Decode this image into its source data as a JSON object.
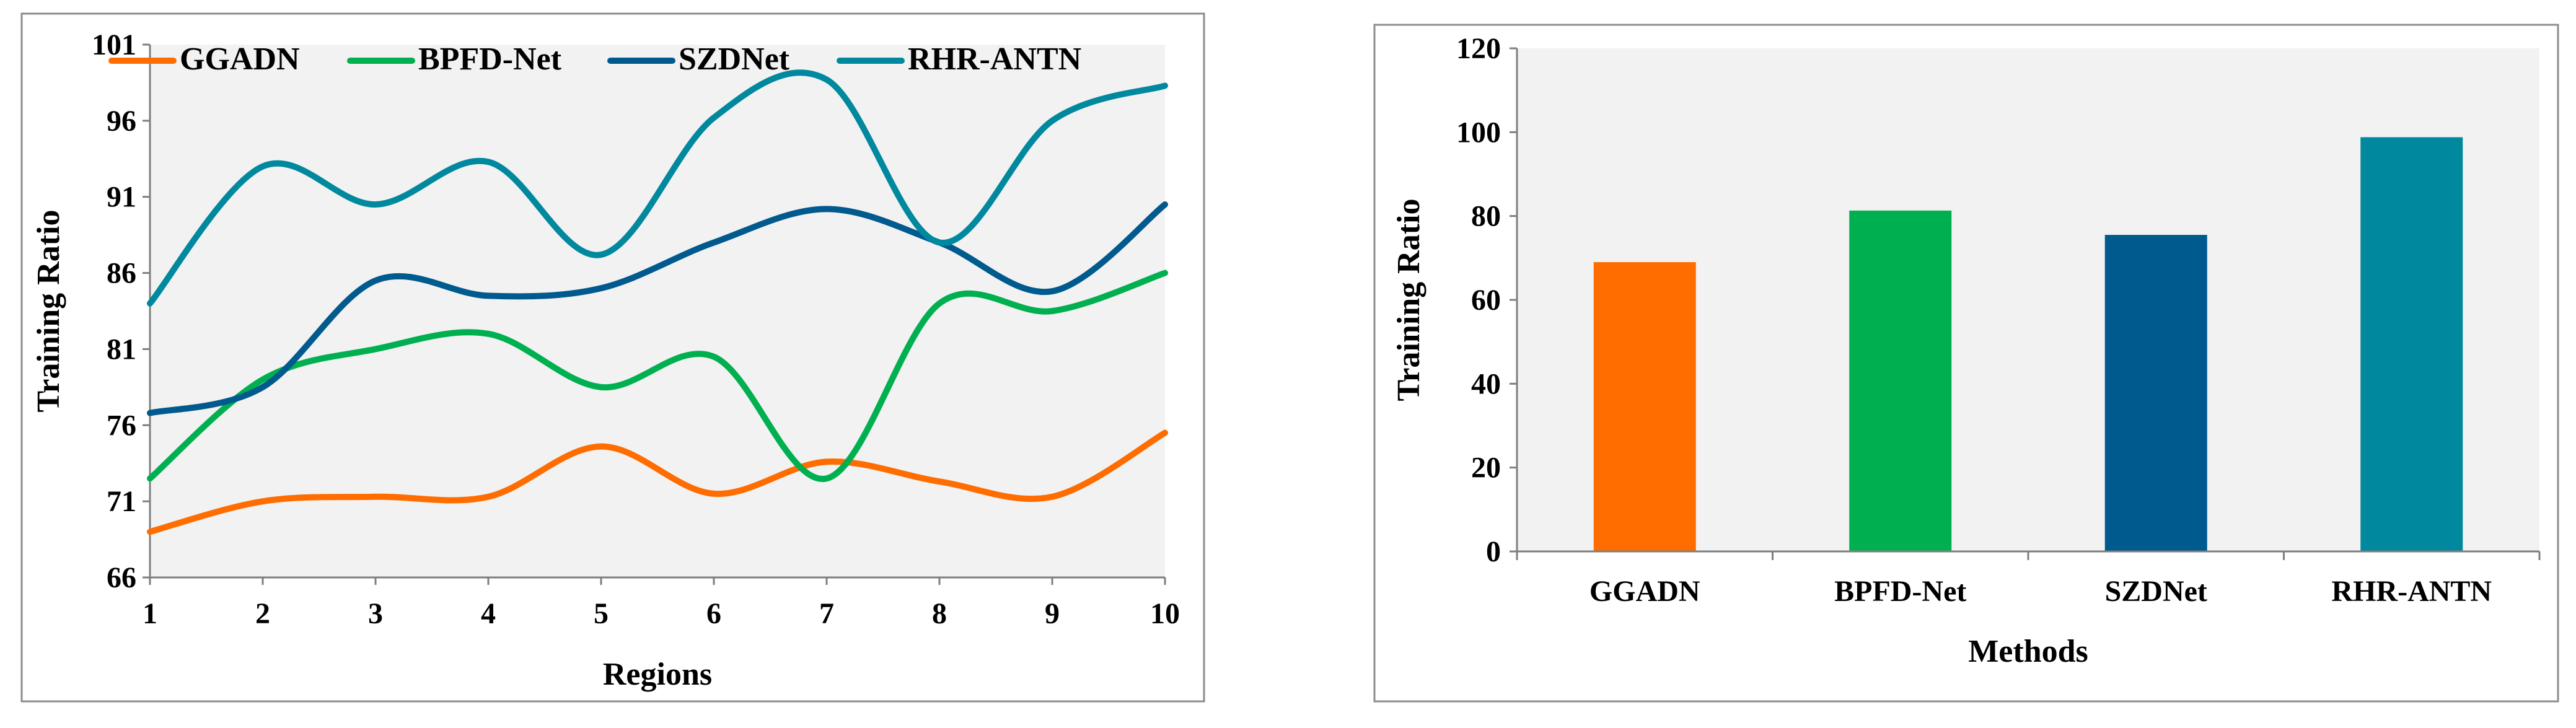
{
  "chart_data": [
    {
      "type": "line",
      "smooth": true,
      "xlabel": "Regions",
      "ylabel": "Training Ratio",
      "x": [
        1,
        2,
        3,
        4,
        5,
        6,
        7,
        8,
        9,
        10
      ],
      "xticks": [
        "1",
        "2",
        "3",
        "4",
        "5",
        "6",
        "7",
        "8",
        "9",
        "10"
      ],
      "ylim": [
        66,
        101
      ],
      "yticks": [
        66,
        71,
        76,
        81,
        86,
        91,
        96,
        101
      ],
      "legend": "top",
      "series": [
        {
          "name": "GGADN",
          "color": "#ff6d00",
          "values": [
            69,
            71,
            71.3,
            71.3,
            74.6,
            71.5,
            73.6,
            72.3,
            71.3,
            75.5
          ]
        },
        {
          "name": "BPFD-Net",
          "color": "#00b050",
          "values": [
            72.5,
            79,
            81,
            82,
            78.5,
            80.5,
            72.5,
            84,
            83.5,
            86
          ]
        },
        {
          "name": "SZDNet",
          "color": "#005a8e",
          "values": [
            76.8,
            78.5,
            85.5,
            84.5,
            85,
            88,
            90.2,
            88,
            84.8,
            90.5
          ]
        },
        {
          "name": "RHR-ANTN",
          "color": "#00889e",
          "values": [
            84,
            93,
            90.5,
            93.3,
            87.2,
            96.2,
            98.7,
            88,
            96,
            98.3
          ]
        }
      ]
    },
    {
      "type": "bar",
      "xlabel": "Methods",
      "ylabel": "Training Ratio",
      "categories": [
        "GGADN",
        "BPFD-Net",
        "SZDNet",
        "RHR-ANTN"
      ],
      "values": [
        69,
        81.3,
        75.5,
        98.8
      ],
      "colors": [
        "#ff6d00",
        "#00b050",
        "#005a8e",
        "#00889e"
      ],
      "ylim": [
        0,
        120
      ],
      "yticks": [
        0,
        20,
        40,
        60,
        80,
        100,
        120
      ]
    }
  ]
}
